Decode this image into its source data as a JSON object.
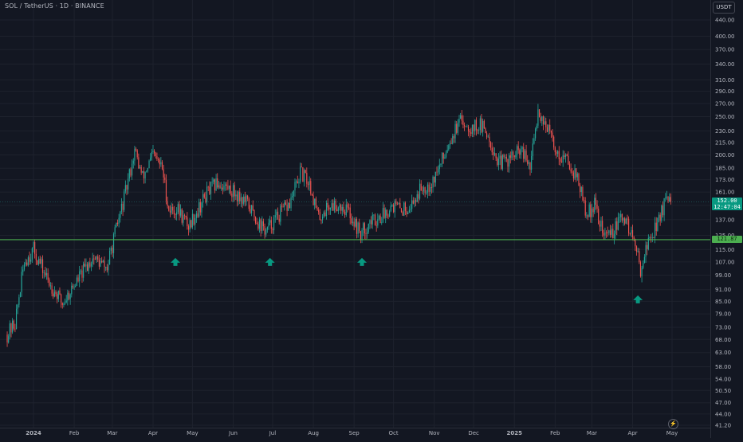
{
  "header": {
    "symbol_title": "SOL / TetherUS · 1D · BINANCE",
    "currency": "USDT"
  },
  "colors": {
    "background": "#131722",
    "grid": "#1e222d",
    "up": "#26a69a",
    "down": "#ef5350",
    "support_line": "#4caf50",
    "arrow": "#089981",
    "axis_text": "#b2b5be"
  },
  "price_badge": {
    "price": "152.00",
    "countdown": "12:47:04"
  },
  "level_badge": {
    "price": "121.87"
  },
  "chart_data": {
    "type": "candlestick",
    "title": "",
    "y_scale": "log",
    "ylim": [
      41.2,
      480
    ],
    "y_ticks": [
      "440.00",
      "400.00",
      "370.00",
      "340.00",
      "310.00",
      "290.00",
      "270.00",
      "250.00",
      "230.00",
      "215.00",
      "200.00",
      "185.00",
      "173.00",
      "161.00",
      "149.00",
      "137.00",
      "125.00",
      "115.00",
      "107.00",
      "99.00",
      "91.00",
      "85.00",
      "79.00",
      "73.00",
      "68.00",
      "63.00",
      "58.00",
      "54.00",
      "50.50",
      "47.00",
      "44.00",
      "41.20"
    ],
    "x_ticks": [
      {
        "label": "2024",
        "date": "2024-01-01"
      },
      {
        "label": "Feb",
        "date": "2024-02-01"
      },
      {
        "label": "Mar",
        "date": "2024-03-01"
      },
      {
        "label": "Apr",
        "date": "2024-04-01"
      },
      {
        "label": "May",
        "date": "2024-05-01"
      },
      {
        "label": "Jun",
        "date": "2024-06-01"
      },
      {
        "label": "Jul",
        "date": "2024-07-01"
      },
      {
        "label": "Aug",
        "date": "2024-08-01"
      },
      {
        "label": "Sep",
        "date": "2024-09-01"
      },
      {
        "label": "Oct",
        "date": "2024-10-01"
      },
      {
        "label": "Nov",
        "date": "2024-11-01"
      },
      {
        "label": "Dec",
        "date": "2024-12-01"
      },
      {
        "label": "2025",
        "date": "2025-01-01"
      },
      {
        "label": "Feb",
        "date": "2025-02-01"
      },
      {
        "label": "Mar",
        "date": "2025-03-01"
      },
      {
        "label": "Apr",
        "date": "2025-04-01"
      },
      {
        "label": "May",
        "date": "2025-05-01"
      }
    ],
    "close_path": [
      [
        "2023-12-12",
        70
      ],
      [
        "2023-12-18",
        75
      ],
      [
        "2023-12-25",
        107
      ],
      [
        "2024-01-01",
        115
      ],
      [
        "2024-01-12",
        96
      ],
      [
        "2024-01-23",
        84
      ],
      [
        "2024-02-05",
        98
      ],
      [
        "2024-02-15",
        110
      ],
      [
        "2024-02-26",
        103
      ],
      [
        "2024-03-04",
        130
      ],
      [
        "2024-03-10",
        155
      ],
      [
        "2024-03-18",
        205
      ],
      [
        "2024-03-24",
        175
      ],
      [
        "2024-04-01",
        200
      ],
      [
        "2024-04-08",
        185
      ],
      [
        "2024-04-13",
        145
      ],
      [
        "2024-04-20",
        145
      ],
      [
        "2024-04-28",
        132
      ],
      [
        "2024-05-05",
        145
      ],
      [
        "2024-05-12",
        160
      ],
      [
        "2024-05-20",
        170
      ],
      [
        "2024-05-28",
        165
      ],
      [
        "2024-06-05",
        158
      ],
      [
        "2024-06-12",
        150
      ],
      [
        "2024-06-20",
        135
      ],
      [
        "2024-06-26",
        128
      ],
      [
        "2024-07-05",
        140
      ],
      [
        "2024-07-14",
        150
      ],
      [
        "2024-07-22",
        180
      ],
      [
        "2024-07-29",
        170
      ],
      [
        "2024-08-05",
        138
      ],
      [
        "2024-08-12",
        148
      ],
      [
        "2024-08-20",
        150
      ],
      [
        "2024-08-27",
        145
      ],
      [
        "2024-09-06",
        126
      ],
      [
        "2024-09-13",
        135
      ],
      [
        "2024-09-22",
        140
      ],
      [
        "2024-09-30",
        150
      ],
      [
        "2024-10-07",
        145
      ],
      [
        "2024-10-15",
        150
      ],
      [
        "2024-10-22",
        165
      ],
      [
        "2024-10-30",
        170
      ],
      [
        "2024-11-06",
        190
      ],
      [
        "2024-11-13",
        220
      ],
      [
        "2024-11-22",
        245
      ],
      [
        "2024-11-29",
        235
      ],
      [
        "2024-12-06",
        238
      ],
      [
        "2024-12-12",
        225
      ],
      [
        "2024-12-20",
        190
      ],
      [
        "2024-12-28",
        195
      ],
      [
        "2025-01-06",
        205
      ],
      [
        "2025-01-13",
        185
      ],
      [
        "2025-01-19",
        260
      ],
      [
        "2025-01-26",
        235
      ],
      [
        "2025-02-03",
        200
      ],
      [
        "2025-02-10",
        195
      ],
      [
        "2025-02-18",
        175
      ],
      [
        "2025-02-25",
        140
      ],
      [
        "2025-03-03",
        150
      ],
      [
        "2025-03-10",
        125
      ],
      [
        "2025-03-17",
        128
      ],
      [
        "2025-03-25",
        140
      ],
      [
        "2025-04-01",
        124
      ],
      [
        "2025-04-07",
        103
      ],
      [
        "2025-04-12",
        118
      ],
      [
        "2025-04-20",
        135
      ],
      [
        "2025-04-25",
        150
      ],
      [
        "2025-04-30",
        152
      ]
    ],
    "horizontal_line": 121.87,
    "arrows": [
      {
        "date": "2024-04-18",
        "price": 107
      },
      {
        "date": "2024-06-29",
        "price": 107
      },
      {
        "date": "2024-09-07",
        "price": 107
      },
      {
        "date": "2025-04-05",
        "price": 86
      }
    ]
  }
}
